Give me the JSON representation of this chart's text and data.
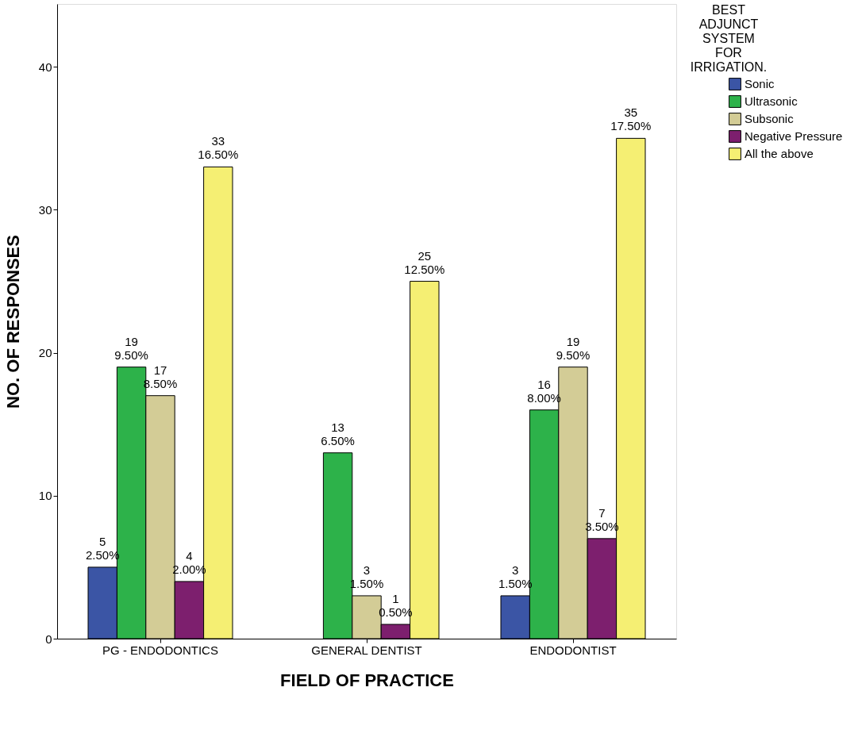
{
  "chart_data": {
    "type": "bar",
    "xlabel": "FIELD OF PRACTICE",
    "ylabel": "NO. OF RESPONSES",
    "legend_title": "BEST ADJUNCT SYSTEM FOR IRRIGATION.",
    "legend": "right",
    "categories": [
      "PG - ENDODONTICS",
      "GENERAL DENTIST",
      "ENDODONTIST"
    ],
    "series": [
      {
        "name": "Sonic",
        "color": "#3b55a5",
        "values": [
          5,
          null,
          3
        ],
        "value_labels": [
          "5\n2.50%",
          null,
          "3\n1.50%"
        ]
      },
      {
        "name": "Ultrasonic",
        "color": "#2db24a",
        "values": [
          19,
          13,
          16
        ],
        "value_labels": [
          "19\n9.50%",
          "13\n6.50%",
          "16\n8.00%"
        ]
      },
      {
        "name": "Subsonic",
        "color": "#d3cc96",
        "values": [
          17,
          3,
          19
        ],
        "value_labels": [
          "17\n8.50%",
          "3\n1.50%",
          "19\n9.50%"
        ]
      },
      {
        "name": "Negative Pressure",
        "color": "#7d1f6e",
        "values": [
          4,
          1,
          7
        ],
        "value_labels": [
          "4\n2.00%",
          "1\n0.50%",
          "7\n3.50%"
        ]
      },
      {
        "name": "All the above",
        "color": "#f5ef73",
        "values": [
          33,
          25,
          35
        ],
        "value_labels": [
          "33\n16.50%",
          "25\n12.50%",
          "35\n17.50%"
        ]
      }
    ],
    "ylim": [
      0,
      44.4
    ],
    "yticks": [
      0,
      10,
      20,
      30,
      40
    ],
    "grid": false
  }
}
